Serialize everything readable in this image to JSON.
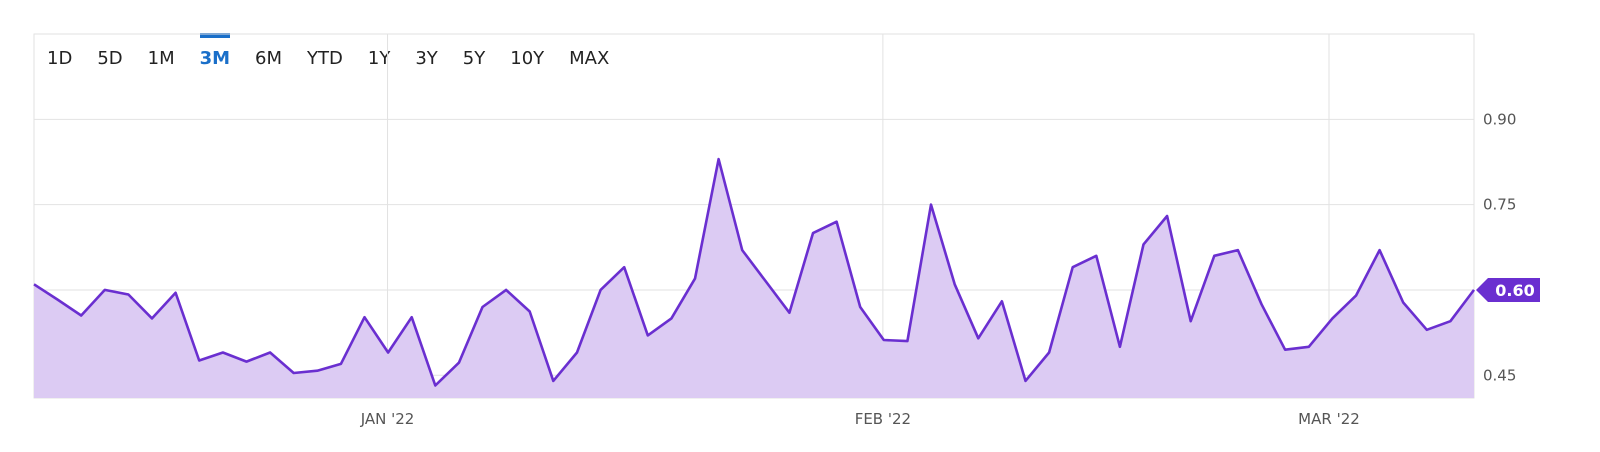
{
  "range_tabs": {
    "items": [
      "1D",
      "5D",
      "1M",
      "3M",
      "6M",
      "YTD",
      "1Y",
      "3Y",
      "5Y",
      "10Y",
      "MAX"
    ],
    "active": "3M"
  },
  "colors": {
    "line": "#6a2fd0",
    "fill": "#dccbf3",
    "grid": "#e2e2e2",
    "accent": "#1a6fc9",
    "badge": "#6a2fd0"
  },
  "chart_data": {
    "type": "area",
    "last_value_label": "0.60",
    "y_ticks": [
      0.45,
      0.6,
      0.75,
      0.9
    ],
    "y_tick_labels": [
      "0.45",
      "0.60",
      "0.75",
      "0.90"
    ],
    "ylim": [
      0.41,
      1.05
    ],
    "x_ticks": [
      "JAN '22",
      "FEB '22",
      "MAR '22"
    ],
    "series": [
      {
        "values": [
          0.61,
          0.583,
          0.555,
          0.6,
          0.592,
          0.55,
          0.595,
          0.476,
          0.49,
          0.474,
          0.49,
          0.454,
          0.458,
          0.47,
          0.552,
          0.49,
          0.552,
          0.432,
          0.472,
          0.57,
          0.6,
          0.562,
          0.44,
          0.49,
          0.6,
          0.64,
          0.52,
          0.55,
          0.62,
          0.83,
          0.67,
          0.615,
          0.56,
          0.7,
          0.72,
          0.57,
          0.512,
          0.51,
          0.75,
          0.61,
          0.515,
          0.58,
          0.44,
          0.49,
          0.64,
          0.66,
          0.5,
          0.68,
          0.73,
          0.545,
          0.66,
          0.67,
          0.575,
          0.495,
          0.5,
          0.55,
          0.59,
          0.67,
          0.578,
          0.53,
          0.545,
          0.6
        ]
      }
    ]
  }
}
